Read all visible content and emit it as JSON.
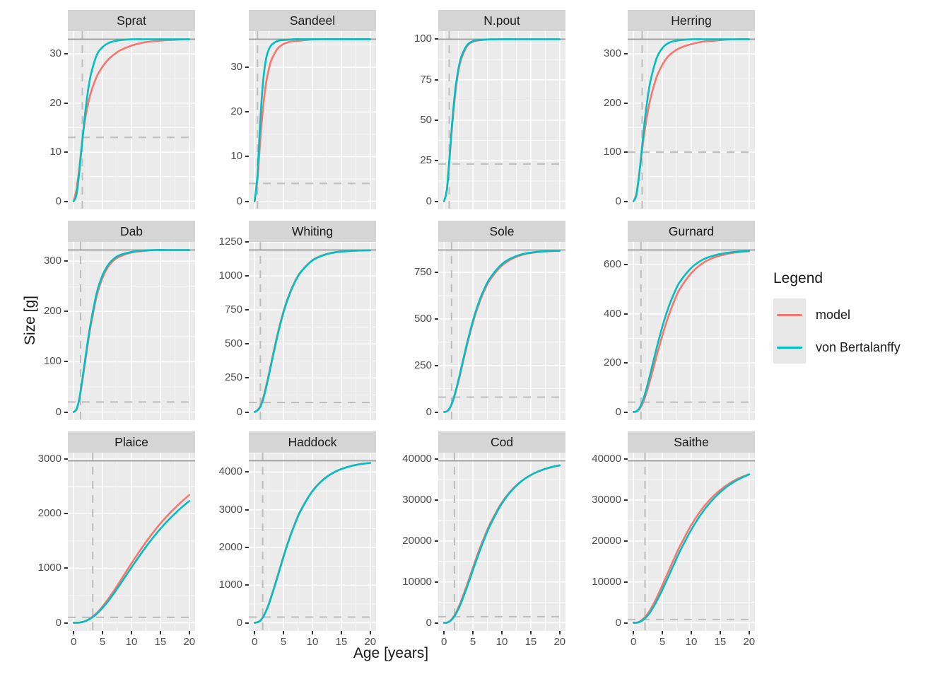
{
  "figure": {
    "y_axis_title": "Size [g]",
    "x_axis_title": "Age [years]",
    "legend": {
      "title": "Legend",
      "items": [
        {
          "label": "model",
          "color": "#F8766D"
        },
        {
          "label": "von Bertalanffy",
          "color": "#00BFC4"
        }
      ]
    },
    "colors": {
      "panel_bg": "#EBEBEB",
      "grid": "#FFFFFF",
      "strip_bg": "#D5D5D5",
      "axis_text": "#4D4D4D",
      "solid_refline": "#9E9E9E",
      "dashed_refline": "#BDBDBD",
      "model": "#F8766D",
      "von_bertalanffy": "#00BFC4"
    }
  },
  "chart_data": {
    "type": "line",
    "xlabel": "Age [years]",
    "ylabel": "Size [g]",
    "x_ticks": [
      0,
      5,
      10,
      15,
      20
    ],
    "x_minor": [
      2.5,
      7.5,
      12.5,
      17.5
    ],
    "xlim": [
      -1,
      21
    ],
    "series_names": [
      "model",
      "von Bertalanffy"
    ],
    "x": [
      0,
      0.5,
      1,
      1.5,
      2,
      2.5,
      3,
      4,
      5,
      6,
      7,
      8,
      10,
      12,
      14,
      16,
      18,
      20
    ],
    "panels": [
      {
        "title": "Sprat",
        "ylim": [
          -1.65,
          34.65
        ],
        "yticks": [
          0,
          10,
          20,
          30
        ],
        "solid_hline": 33,
        "dashed_hline": 13,
        "dashed_vline": 1.5,
        "model": [
          0,
          2.5,
          7.0,
          12.5,
          16.8,
          19.8,
          22.2,
          25.4,
          27.4,
          28.9,
          29.9,
          30.7,
          31.7,
          32.3,
          32.6,
          32.8,
          32.9,
          33
        ],
        "vb": [
          0,
          1.4,
          6.2,
          12.4,
          18.0,
          22.6,
          25.9,
          29.8,
          31.4,
          32.2,
          32.6,
          32.8,
          33,
          33,
          33,
          33,
          33,
          33
        ]
      },
      {
        "title": "Sandeel",
        "ylim": [
          -1.8,
          38.1
        ],
        "yticks": [
          0,
          10,
          20,
          30
        ],
        "solid_hline": 36.3,
        "dashed_hline": 4,
        "dashed_vline": 0.5,
        "model": [
          0,
          5.0,
          14.0,
          21.5,
          26.5,
          29.8,
          31.9,
          34.2,
          35.2,
          35.7,
          35.9,
          36.0,
          36.2,
          36.3,
          36.3,
          36.3,
          36.3,
          36.3
        ],
        "vb": [
          0,
          6.1,
          18.4,
          27.3,
          32.0,
          34.1,
          35.1,
          35.9,
          36.1,
          36.2,
          36.3,
          36.3,
          36.3,
          36.3,
          36.3,
          36.3,
          36.3,
          36.3
        ]
      },
      {
        "title": "N.pout",
        "ylim": [
          -5,
          105
        ],
        "yticks": [
          0,
          25,
          50,
          75,
          100
        ],
        "solid_hline": 100,
        "dashed_hline": 23,
        "dashed_vline": 0.9,
        "model": [
          0,
          7.0,
          28.0,
          50.5,
          68.0,
          80.5,
          88.0,
          95.8,
          98.5,
          99.3,
          99.7,
          99.9,
          100,
          100,
          100,
          100,
          100,
          100
        ],
        "vb": [
          0,
          7.6,
          29.7,
          52.7,
          70.3,
          82.0,
          89.3,
          96.4,
          98.8,
          99.5,
          99.8,
          99.9,
          100,
          100,
          100,
          100,
          100,
          100
        ]
      },
      {
        "title": "Herring",
        "ylim": [
          -16.5,
          346.5
        ],
        "yticks": [
          0,
          100,
          200,
          300
        ],
        "solid_hline": 330,
        "dashed_hline": 100,
        "dashed_vline": 1.5,
        "model": [
          0,
          15,
          57,
          105,
          148,
          183,
          212,
          253,
          278,
          295,
          305,
          312,
          320,
          325,
          327,
          329,
          330,
          330
        ],
        "vb": [
          0,
          12,
          55,
          113,
          168,
          214,
          248,
          291,
          312,
          322,
          326,
          328,
          330,
          330,
          330,
          330,
          330,
          330
        ]
      },
      {
        "title": "Dab",
        "ylim": [
          -16.1,
          338.1
        ],
        "yticks": [
          0,
          100,
          200,
          300
        ],
        "solid_hline": 322,
        "dashed_hline": 20,
        "dashed_vline": 1.2,
        "model": [
          0,
          5,
          26,
          61,
          100,
          139,
          174,
          231,
          267,
          289,
          302,
          309,
          317,
          320,
          322,
          322,
          322,
          322
        ],
        "vb": [
          0,
          6,
          28,
          65,
          105,
          145,
          180,
          237,
          272,
          293,
          305,
          312,
          318,
          321,
          322,
          322,
          322,
          322
        ]
      },
      {
        "title": "Whiting",
        "ylim": [
          -59.5,
          1249.5
        ],
        "yticks": [
          0,
          250,
          500,
          750,
          1000,
          1250
        ],
        "solid_hline": 1190,
        "dashed_hline": 70,
        "dashed_vline": 1.0,
        "model": [
          0,
          15,
          45,
          107,
          191,
          286,
          386,
          578,
          740,
          866,
          961,
          1030,
          1115,
          1155,
          1174,
          1182,
          1186,
          1188
        ],
        "vb": [
          0,
          12,
          38,
          97,
          179,
          274,
          374,
          567,
          731,
          859,
          957,
          1027,
          1113,
          1153,
          1173,
          1181,
          1186,
          1188
        ]
      },
      {
        "title": "Sole",
        "ylim": [
          -43.5,
          913.5
        ],
        "yticks": [
          0,
          250,
          500,
          750
        ],
        "solid_hline": 870,
        "dashed_hline": 80,
        "dashed_vline": 1.3,
        "model": [
          0,
          4,
          20,
          55,
          105,
          164,
          230,
          362,
          480,
          577,
          654,
          712,
          786,
          826,
          848,
          858,
          863,
          866
        ],
        "vb": [
          0,
          4,
          22,
          59,
          111,
          172,
          239,
          372,
          491,
          588,
          664,
          721,
          794,
          831,
          851,
          860,
          864,
          866
        ]
      },
      {
        "title": "Gurnard",
        "ylim": [
          -33,
          693
        ],
        "yticks": [
          0,
          200,
          400,
          600
        ],
        "solid_hline": 660,
        "dashed_hline": 40,
        "dashed_vline": 1.3,
        "model": [
          0,
          2,
          10,
          30,
          60,
          98,
          140,
          228,
          312,
          387,
          449,
          500,
          566,
          607,
          630,
          643,
          651,
          655
        ],
        "vb": [
          0,
          3,
          15,
          40,
          74,
          117,
          164,
          260,
          348,
          423,
          482,
          529,
          587,
          621,
          638,
          648,
          653,
          656
        ]
      },
      {
        "title": "Plaice",
        "ylim": [
          -148.5,
          3118.5
        ],
        "yticks": [
          0,
          1000,
          2000,
          3000
        ],
        "solid_hline": 2970,
        "dashed_hline": 100,
        "dashed_vline": 3.3,
        "model": [
          0,
          1,
          5,
          15,
          33,
          58,
          92,
          180,
          300,
          440,
          595,
          757,
          1090,
          1405,
          1690,
          1940,
          2155,
          2345
        ],
        "vb": [
          0,
          1,
          4,
          13,
          29,
          52,
          82,
          164,
          273,
          401,
          545,
          698,
          1014,
          1319,
          1596,
          1841,
          2051,
          2233
        ]
      },
      {
        "title": "Haddock",
        "ylim": [
          -215,
          4515
        ],
        "yticks": [
          0,
          1000,
          2000,
          3000,
          4000
        ],
        "solid_hline": 4300,
        "dashed_hline": 150,
        "dashed_vline": 1.4,
        "model": [
          0,
          16,
          62,
          168,
          324,
          524,
          756,
          1258,
          1770,
          2240,
          2650,
          2995,
          3500,
          3820,
          4015,
          4132,
          4204,
          4242
        ],
        "vb": [
          0,
          14,
          57,
          159,
          312,
          509,
          739,
          1236,
          1749,
          2220,
          2632,
          2980,
          3492,
          3816,
          4013,
          4131,
          4204,
          4242
        ]
      },
      {
        "title": "Cod",
        "ylim": [
          -1980,
          41580
        ],
        "yticks": [
          0,
          10000,
          20000,
          30000,
          40000
        ],
        "solid_hline": 39600,
        "dashed_hline": 1500,
        "dashed_vline": 1.8,
        "model": [
          0,
          60,
          420,
          1180,
          2300,
          3800,
          5500,
          9400,
          13500,
          17500,
          21100,
          24300,
          29400,
          32900,
          35250,
          36800,
          37800,
          38450
        ],
        "vb": [
          0,
          45,
          356,
          1018,
          2038,
          3397,
          5036,
          8815,
          12897,
          16903,
          20584,
          23891,
          29158,
          32784,
          35233,
          36833,
          37854,
          38499
        ]
      },
      {
        "title": "Saithe",
        "ylim": [
          -1980,
          41580
        ],
        "yticks": [
          0,
          10000,
          20000,
          30000,
          40000
        ],
        "solid_hline": 39600,
        "dashed_hline": 800,
        "dashed_vline": 2.0,
        "model": [
          0,
          30,
          250,
          750,
          1400,
          2300,
          3400,
          6100,
          9200,
          12400,
          15600,
          18600,
          23900,
          28100,
          31200,
          33500,
          35200,
          36300
        ],
        "vb": [
          0,
          20,
          171,
          540,
          1069,
          1834,
          2811,
          5226,
          8078,
          11166,
          14296,
          17384,
          22730,
          27166,
          30529,
          33106,
          34925,
          36269
        ]
      }
    ]
  }
}
